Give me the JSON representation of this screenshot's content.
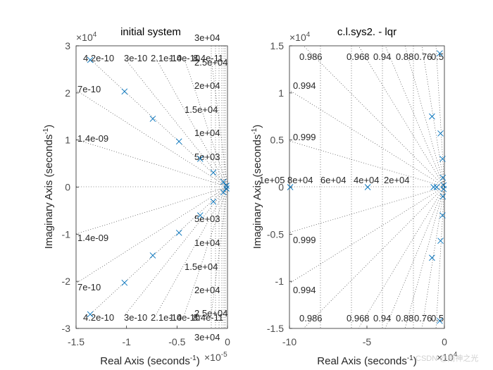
{
  "chart_data": [
    {
      "type": "scatter",
      "title": "initial system",
      "xlabel": "Real Axis (seconds",
      "xlabel_sup": "-1",
      "xlabel_tail": ")",
      "ylabel": "Imaginary Axis (seconds",
      "ylabel_sup": "-1",
      "ylabel_tail": ")",
      "x_exponent": "×10",
      "x_exponent_sup": "-5",
      "y_exponent": "×10",
      "y_exponent_sup": "4",
      "xlim": [
        -1.5,
        0
      ],
      "ylim": [
        -3,
        3
      ],
      "xticks": [
        -1.5,
        -1,
        -0.5,
        0
      ],
      "xtick_labels": [
        "-1.5",
        "-1",
        "-0.5",
        "0"
      ],
      "yticks": [
        -3,
        -2,
        -1,
        0,
        1,
        2,
        3
      ],
      "ytick_labels": [
        "-3",
        "-2",
        "-1",
        "0",
        "1",
        "2",
        "3"
      ],
      "marker": "x",
      "points": [
        {
          "x": -1.36,
          "y": 2.7
        },
        {
          "x": -1.36,
          "y": -2.7
        },
        {
          "x": -1.02,
          "y": 2.03
        },
        {
          "x": -1.02,
          "y": -2.03
        },
        {
          "x": -0.74,
          "y": 1.45
        },
        {
          "x": -0.74,
          "y": -1.45
        },
        {
          "x": -0.48,
          "y": 0.97
        },
        {
          "x": -0.48,
          "y": -0.97
        },
        {
          "x": -0.27,
          "y": 0.6
        },
        {
          "x": -0.27,
          "y": -0.6
        },
        {
          "x": -0.14,
          "y": 0.31
        },
        {
          "x": -0.14,
          "y": -0.31
        },
        {
          "x": -0.04,
          "y": 0.11
        },
        {
          "x": -0.04,
          "y": -0.11
        },
        {
          "x": -0.01,
          "y": 0.03
        },
        {
          "x": -0.01,
          "y": -0.03
        }
      ],
      "damping_labels_upper": [
        "4.2e-10",
        "3e-10",
        "2.1e-10",
        "1.4e-10",
        "8.4e-11",
        "7e-10",
        "1.4e-09"
      ],
      "damping_labels_lower": [
        "4.2e-10",
        "3e-10",
        "2.1e-10",
        "1.4e-10",
        "8.4e-11",
        "7e-10",
        "1.4e-09"
      ],
      "frequency_labels_upper": [
        "3e+04",
        "2.5e+04",
        "2e+04",
        "1.5e+04",
        "1e+04",
        "5e+03"
      ],
      "frequency_labels_lower": [
        "5e+03",
        "1e+04",
        "1.5e+04",
        "2e+04",
        "2.5e+04",
        "3e+04"
      ]
    },
    {
      "type": "scatter",
      "title": "c.l.sys2. - lqr",
      "xlabel": "Real Axis (seconds",
      "xlabel_sup": "-1",
      "xlabel_tail": ")",
      "ylabel": "Imaginary Axis (seconds",
      "ylabel_sup": "-1",
      "ylabel_tail": ")",
      "x_exponent": "×10",
      "x_exponent_sup": "4",
      "y_exponent": "×10",
      "y_exponent_sup": "4",
      "xlim": [
        -10,
        0
      ],
      "ylim": [
        -1.5,
        1.5
      ],
      "xticks": [
        -10,
        -5,
        0
      ],
      "xtick_labels": [
        "-10",
        "-5",
        "0"
      ],
      "yticks": [
        -1.5,
        -1,
        -0.5,
        0,
        0.5,
        1,
        1.5
      ],
      "ytick_labels": [
        "-1.5",
        "-1",
        "-0.5",
        "0",
        "0.5",
        "1",
        "1.5"
      ],
      "marker": "x",
      "points": [
        {
          "x": -9.95,
          "y": 0
        },
        {
          "x": -4.95,
          "y": 0
        },
        {
          "x": -0.7,
          "y": 0
        },
        {
          "x": -0.5,
          "y": 0
        },
        {
          "x": -0.8,
          "y": 0.75
        },
        {
          "x": -0.8,
          "y": -0.75
        },
        {
          "x": -0.3,
          "y": 1.42
        },
        {
          "x": -0.3,
          "y": -1.42
        },
        {
          "x": -0.25,
          "y": 0.57
        },
        {
          "x": -0.25,
          "y": -0.57
        },
        {
          "x": -0.12,
          "y": 0.3
        },
        {
          "x": -0.12,
          "y": -0.3
        },
        {
          "x": -0.1,
          "y": 0.1
        },
        {
          "x": -0.1,
          "y": -0.1
        },
        {
          "x": -0.05,
          "y": 0.02
        },
        {
          "x": -0.05,
          "y": -0.02
        }
      ],
      "damping_labels": [
        "0.986",
        "0.968",
        "0.94",
        "0.88",
        "0.76",
        "0.5",
        "0.994",
        "0.999"
      ],
      "frequency_labels": [
        "1e+05",
        "8e+04",
        "6e+04",
        "4e+04",
        "2e+04"
      ]
    }
  ],
  "watermark": "CSDN @雨神之光"
}
